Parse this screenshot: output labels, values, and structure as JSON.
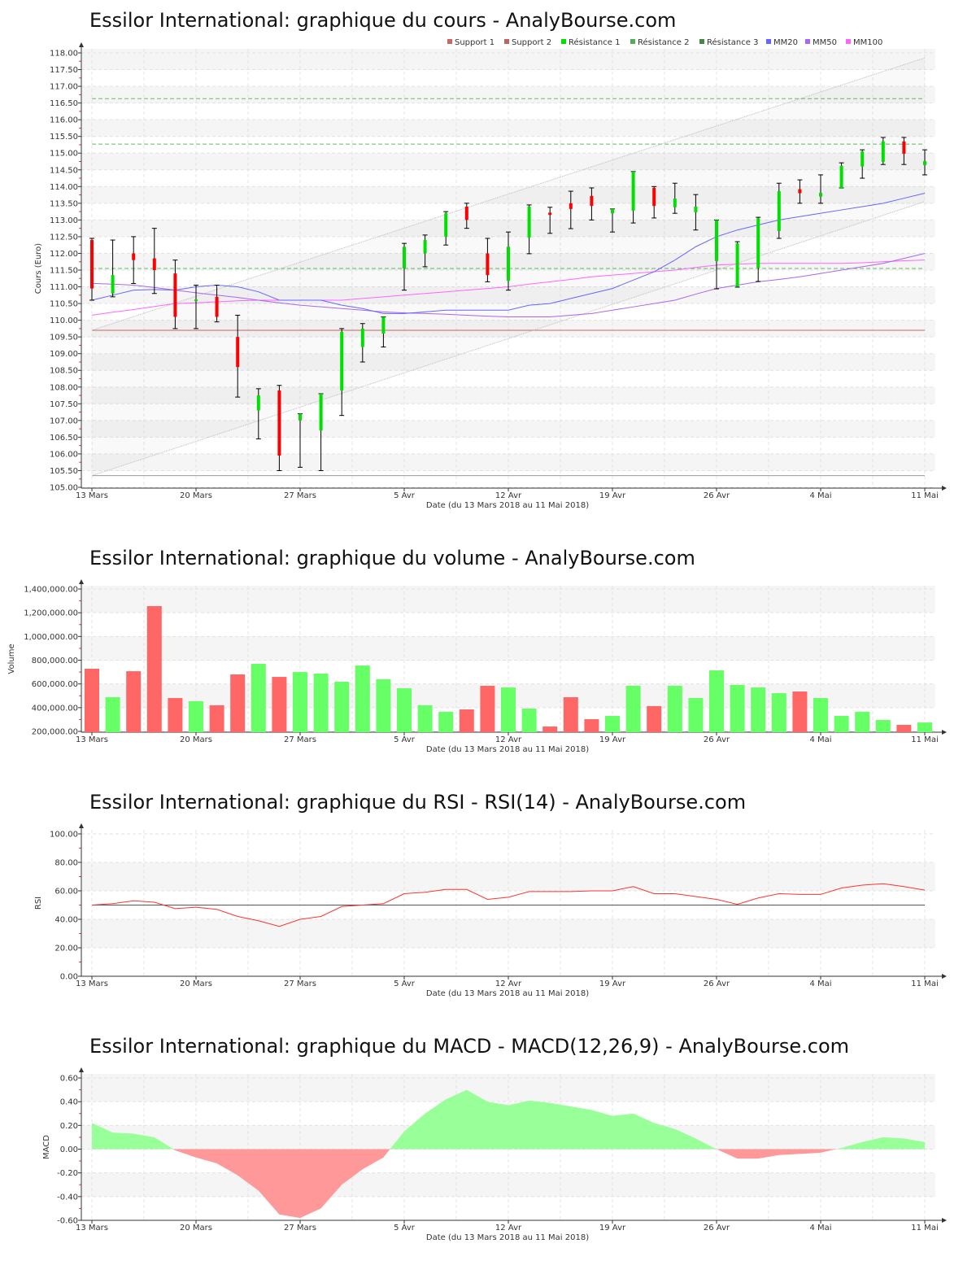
{
  "x_ticks": [
    {
      "label": "13 Mars",
      "index": 0
    },
    {
      "label": "20 Mars",
      "index": 5
    },
    {
      "label": "27 Mars",
      "index": 10
    },
    {
      "label": "5 Avr",
      "index": 15
    },
    {
      "label": "12 Avr",
      "index": 20
    },
    {
      "label": "19 Avr",
      "index": 25
    },
    {
      "label": "26 Avr",
      "index": 30
    },
    {
      "label": "4 Mai",
      "index": 35
    },
    {
      "label": "11 Mai",
      "index": 40
    }
  ],
  "xlabel": "Date (du 13 Mars 2018 au 11 Mai 2018)",
  "colors": {
    "up": "#00e000",
    "down": "#ff0000",
    "support": "#cc6666",
    "resistance": "#66bb66",
    "mm20": "#6666ff",
    "mm50": "#aa66ee",
    "mm100": "#ff66ff",
    "rsi": "#ff3333",
    "macd_pos": "#99ff99",
    "macd_neg": "#ff9999"
  },
  "chart_data": [
    {
      "type": "candlestick",
      "title": "Essilor International: graphique du cours - AnalyBourse.com",
      "ylabel": "Cours (Euro)",
      "ylim": [
        105,
        118
      ],
      "ytick_step": 0.5,
      "legend": [
        "Support 1",
        "Support 2",
        "Résistance 1",
        "Résistance 2",
        "Résistance 3",
        "MM20",
        "MM50",
        "MM100"
      ],
      "legend_placement": "top-right",
      "ohlc": [
        [
          112.4,
          112.45,
          110.6,
          110.95
        ],
        [
          110.8,
          112.4,
          110.7,
          111.35
        ],
        [
          112.0,
          112.5,
          111.1,
          111.8
        ],
        [
          111.85,
          112.75,
          110.8,
          111.5
        ],
        [
          111.4,
          111.8,
          109.75,
          110.1
        ],
        [
          110.6,
          111.05,
          109.75,
          110.62
        ],
        [
          110.7,
          111.05,
          109.95,
          110.1
        ],
        [
          109.5,
          110.15,
          107.7,
          108.6
        ],
        [
          107.3,
          107.95,
          106.45,
          107.75
        ],
        [
          107.9,
          108.05,
          105.5,
          105.95
        ],
        [
          107.0,
          107.2,
          105.6,
          107.2
        ],
        [
          106.7,
          107.8,
          105.5,
          107.8
        ],
        [
          107.9,
          109.75,
          107.15,
          109.65
        ],
        [
          109.2,
          109.9,
          108.75,
          109.75
        ],
        [
          109.6,
          110.1,
          109.2,
          110.1
        ],
        [
          111.55,
          112.3,
          110.9,
          112.2
        ],
        [
          112.0,
          112.55,
          111.6,
          112.4
        ],
        [
          112.5,
          113.25,
          112.25,
          113.2
        ],
        [
          113.4,
          113.5,
          112.75,
          113.0
        ],
        [
          112.0,
          112.45,
          111.15,
          111.35
        ],
        [
          111.18,
          112.64,
          110.9,
          112.2
        ],
        [
          112.47,
          113.45,
          111.99,
          113.4
        ],
        [
          113.22,
          113.38,
          112.6,
          113.15
        ],
        [
          113.5,
          113.86,
          112.74,
          113.33
        ],
        [
          113.72,
          113.96,
          113.0,
          113.42
        ],
        [
          113.2,
          113.33,
          112.64,
          113.33
        ],
        [
          113.28,
          114.45,
          112.91,
          114.45
        ],
        [
          113.96,
          114.0,
          113.06,
          113.42
        ],
        [
          113.38,
          114.1,
          113.2,
          113.64
        ],
        [
          113.23,
          113.76,
          112.7,
          113.4
        ],
        [
          111.77,
          113.0,
          110.94,
          113.0
        ],
        [
          111.0,
          112.35,
          110.99,
          112.3
        ],
        [
          111.57,
          113.08,
          111.16,
          113.05
        ],
        [
          112.67,
          114.1,
          112.45,
          113.86
        ],
        [
          113.92,
          114.2,
          113.5,
          113.8
        ],
        [
          113.7,
          114.35,
          113.5,
          113.81
        ],
        [
          113.96,
          114.71,
          113.96,
          114.62
        ],
        [
          114.6,
          115.1,
          114.25,
          115.05
        ],
        [
          114.74,
          115.47,
          114.66,
          115.35
        ],
        [
          115.35,
          115.47,
          114.66,
          114.98
        ],
        [
          114.64,
          115.1,
          114.35,
          114.76
        ]
      ],
      "levels": {
        "support_1": 109.7,
        "support_2": 105.35,
        "resistance_1": 111.55,
        "resistance_2": 115.27,
        "resistance_3": 116.63
      },
      "channel": {
        "upper": [
          109.7,
          117.85
        ],
        "lower": [
          105.35,
          113.55
        ]
      },
      "mm20": [
        110.6,
        110.75,
        110.9,
        110.92,
        110.9,
        111.0,
        111.05,
        111.0,
        110.85,
        110.6,
        110.6,
        110.6,
        110.45,
        110.35,
        110.2,
        110.2,
        110.25,
        110.3,
        110.3,
        110.3,
        110.3,
        110.45,
        110.5,
        110.65,
        110.8,
        110.95,
        111.2,
        111.45,
        111.8,
        112.2,
        112.5,
        112.7,
        112.85,
        113.0,
        113.1,
        113.2,
        113.3,
        113.4,
        113.5,
        113.65,
        113.8
      ],
      "mm50": [
        111.1,
        111.08,
        111.05,
        110.98,
        110.9,
        110.82,
        110.75,
        110.68,
        110.6,
        110.52,
        110.45,
        110.4,
        110.35,
        110.3,
        110.25,
        110.22,
        110.2,
        110.18,
        110.15,
        110.12,
        110.1,
        110.1,
        110.1,
        110.15,
        110.2,
        110.3,
        110.4,
        110.5,
        110.6,
        110.78,
        110.95,
        111.05,
        111.15,
        111.22,
        111.3,
        111.4,
        111.5,
        111.6,
        111.7,
        111.85,
        112.0
      ],
      "mm100": [
        110.15,
        110.24,
        110.32,
        110.41,
        110.5,
        110.52,
        110.55,
        110.58,
        110.6,
        110.6,
        110.6,
        110.6,
        110.6,
        110.65,
        110.7,
        110.75,
        110.8,
        110.85,
        110.9,
        110.95,
        111.0,
        111.08,
        111.15,
        111.22,
        111.3,
        111.35,
        111.4,
        111.45,
        111.5,
        111.58,
        111.65,
        111.68,
        111.7,
        111.7,
        111.7,
        111.7,
        111.7,
        111.72,
        111.75,
        111.78,
        111.8
      ]
    },
    {
      "type": "bar",
      "title": "Essilor International: graphique du volume - AnalyBourse.com",
      "ylabel": "Volume",
      "ylim": [
        200000,
        1400000
      ],
      "ytick_step": 200000,
      "values": [
        728000,
        488000,
        707000,
        1256000,
        481000,
        454000,
        420000,
        680000,
        769000,
        659000,
        700000,
        687000,
        618000,
        755000,
        639000,
        563000,
        420000,
        365000,
        385000,
        584000,
        570000,
        392000,
        241000,
        488000,
        303000,
        330000,
        584000,
        413000,
        584000,
        481000,
        714000,
        591000,
        570000,
        522000,
        536000,
        481000,
        330000,
        365000,
        296000,
        255000,
        275000
      ]
    },
    {
      "type": "line",
      "title": "Essilor International: graphique du RSI - RSI(14) - AnalyBourse.com",
      "ylabel": "RSI",
      "ylim": [
        0,
        100
      ],
      "ytick_step": 20,
      "reference": 50,
      "values": [
        50,
        51,
        53,
        52,
        47.5,
        48.5,
        47,
        42,
        39,
        35,
        40,
        42,
        49,
        50,
        51,
        58,
        59,
        61,
        61,
        54,
        55.5,
        59.5,
        59.5,
        59.5,
        60,
        60,
        63,
        58,
        58,
        56,
        54,
        50.5,
        55,
        58,
        57.5,
        57.5,
        62,
        64,
        65,
        63,
        60.5
      ]
    },
    {
      "type": "area",
      "title": "Essilor International: graphique du MACD - MACD(12,26,9) - AnalyBourse.com",
      "ylabel": "MACD",
      "ylim": [
        -0.6,
        0.6
      ],
      "ytick_step": 0.2,
      "values": [
        0.22,
        0.14,
        0.13,
        0.1,
        -0.01,
        -0.07,
        -0.12,
        -0.22,
        -0.35,
        -0.55,
        -0.58,
        -0.5,
        -0.3,
        -0.17,
        -0.07,
        0.15,
        0.3,
        0.42,
        0.5,
        0.4,
        0.37,
        0.41,
        0.39,
        0.36,
        0.33,
        0.28,
        0.3,
        0.22,
        0.17,
        0.09,
        0.0,
        -0.08,
        -0.08,
        -0.05,
        -0.04,
        -0.03,
        0.01,
        0.06,
        0.1,
        0.09,
        0.06
      ]
    }
  ]
}
